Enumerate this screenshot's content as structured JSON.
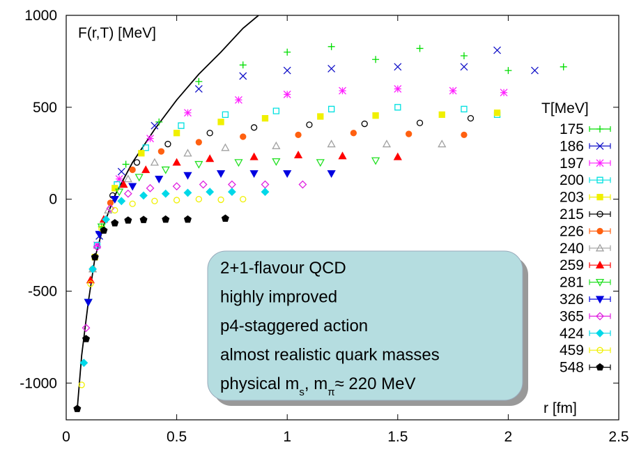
{
  "chart_data": {
    "type": "scatter",
    "ylabel": "F(r,T) [MeV]",
    "xlabel": "r [fm]",
    "legend_title": "T[MeV]",
    "legend_position": "right",
    "xlim": [
      0,
      2.5
    ],
    "xticks": [
      0,
      0.5,
      1,
      1.5,
      2,
      2.5
    ],
    "ylim": [
      -1200,
      1000
    ],
    "yticks": [
      -1000,
      -500,
      0,
      500,
      1000
    ],
    "curve": {
      "color": "#000000",
      "x": [
        0.05,
        0.07,
        0.1,
        0.13,
        0.17,
        0.22,
        0.3,
        0.4,
        0.5,
        0.6,
        0.7,
        0.8,
        0.87
      ],
      "values": [
        -1140,
        -850,
        -560,
        -320,
        -140,
        20,
        200,
        380,
        540,
        680,
        800,
        930,
        1000
      ]
    },
    "series": [
      {
        "name": "175",
        "color": "#00dd00",
        "marker": "plus",
        "x": [
          0.16,
          0.27,
          0.42,
          0.6,
          0.8,
          1.0,
          1.2,
          1.4,
          1.6,
          1.8,
          2.0,
          2.25
        ],
        "values": [
          -150,
          190,
          420,
          640,
          730,
          800,
          830,
          760,
          820,
          780,
          700,
          720
        ]
      },
      {
        "name": "186",
        "color": "#1010c8",
        "marker": "x",
        "x": [
          0.15,
          0.25,
          0.4,
          0.6,
          0.8,
          1.0,
          1.2,
          1.5,
          1.8,
          1.95,
          2.12
        ],
        "values": [
          -200,
          150,
          400,
          600,
          670,
          700,
          710,
          720,
          720,
          810,
          700
        ]
      },
      {
        "name": "197",
        "color": "#ff20ff",
        "marker": "star",
        "x": [
          0.14,
          0.24,
          0.38,
          0.55,
          0.78,
          1.0,
          1.25,
          1.5,
          1.75,
          1.98
        ],
        "values": [
          -250,
          110,
          330,
          470,
          540,
          570,
          590,
          600,
          590,
          580
        ]
      },
      {
        "name": "200",
        "color": "#00e0e0",
        "marker": "square-open",
        "x": [
          0.14,
          0.23,
          0.36,
          0.52,
          0.72,
          0.95,
          1.2,
          1.5,
          1.8,
          1.95
        ],
        "values": [
          -250,
          80,
          280,
          400,
          460,
          480,
          490,
          500,
          490,
          460
        ]
      },
      {
        "name": "203",
        "color": "#f0f000",
        "marker": "square",
        "x": [
          0.13,
          0.22,
          0.34,
          0.5,
          0.7,
          0.9,
          1.15,
          1.4,
          1.7,
          1.95
        ],
        "values": [
          -315,
          60,
          250,
          360,
          420,
          440,
          450,
          455,
          460,
          470
        ]
      },
      {
        "name": "215",
        "color": "#000000",
        "marker": "circle-open",
        "x": [
          0.13,
          0.21,
          0.32,
          0.46,
          0.65,
          0.85,
          1.1,
          1.35,
          1.6,
          1.83
        ],
        "values": [
          -315,
          20,
          200,
          300,
          360,
          390,
          405,
          410,
          415,
          440
        ]
      },
      {
        "name": "226",
        "color": "#ff6010",
        "marker": "circle",
        "x": [
          0.12,
          0.2,
          0.3,
          0.43,
          0.6,
          0.8,
          1.05,
          1.3,
          1.55,
          1.8
        ],
        "values": [
          -380,
          -20,
          160,
          260,
          310,
          340,
          350,
          360,
          355,
          350
        ]
      },
      {
        "name": "240",
        "color": "#a0a0a0",
        "marker": "triangle-open",
        "x": [
          0.12,
          0.19,
          0.28,
          0.4,
          0.55,
          0.72,
          0.95,
          1.2,
          1.45,
          1.7
        ],
        "values": [
          -380,
          -60,
          110,
          200,
          250,
          280,
          290,
          300,
          300,
          300
        ]
      },
      {
        "name": "259",
        "color": "#ff0000",
        "marker": "triangle",
        "x": [
          0.11,
          0.17,
          0.26,
          0.36,
          0.5,
          0.65,
          0.85,
          1.05,
          1.25,
          1.5
        ],
        "values": [
          -440,
          -110,
          80,
          160,
          200,
          220,
          230,
          240,
          235,
          230
        ]
      },
      {
        "name": "281",
        "color": "#20e020",
        "marker": "triangle-down-open",
        "x": [
          0.1,
          0.16,
          0.24,
          0.33,
          0.45,
          0.6,
          0.78,
          0.95,
          1.15,
          1.4
        ],
        "values": [
          -560,
          -150,
          40,
          120,
          160,
          190,
          200,
          205,
          200,
          210
        ]
      },
      {
        "name": "326",
        "color": "#0000e0",
        "marker": "triangle-down",
        "x": [
          0.1,
          0.15,
          0.22,
          0.3,
          0.42,
          0.55,
          0.7,
          0.85,
          1.0,
          1.2
        ],
        "values": [
          -560,
          -190,
          0,
          70,
          110,
          130,
          140,
          140,
          140,
          140
        ]
      },
      {
        "name": "365",
        "color": "#e020e0",
        "marker": "diamond-open",
        "x": [
          0.09,
          0.14,
          0.2,
          0.28,
          0.38,
          0.5,
          0.62,
          0.75,
          0.9,
          1.07
        ],
        "values": [
          -700,
          -260,
          -50,
          30,
          60,
          70,
          80,
          80,
          80,
          80
        ]
      },
      {
        "name": "424",
        "color": "#00d8e8",
        "marker": "diamond",
        "x": [
          0.08,
          0.12,
          0.18,
          0.25,
          0.35,
          0.45,
          0.55,
          0.65,
          0.75,
          0.9
        ],
        "values": [
          -890,
          -380,
          -110,
          -10,
          20,
          30,
          35,
          40,
          40,
          40
        ]
      },
      {
        "name": "459",
        "color": "#f0f000",
        "marker": "circle-open",
        "x": [
          0.07,
          0.11,
          0.16,
          0.22,
          0.3,
          0.4,
          0.5,
          0.6,
          0.7,
          0.8
        ],
        "values": [
          -1010,
          -460,
          -160,
          -60,
          -25,
          -10,
          -5,
          0,
          -3,
          0
        ]
      },
      {
        "name": "548",
        "color": "#000000",
        "marker": "pentagon",
        "x": [
          0.05,
          0.09,
          0.13,
          0.17,
          0.22,
          0.28,
          0.35,
          0.45,
          0.55,
          0.72
        ],
        "values": [
          -1140,
          -760,
          -315,
          -170,
          -130,
          -115,
          -112,
          -110,
          -110,
          -105
        ]
      }
    ],
    "annotation": {
      "fill": "#b5dde0",
      "lines": [
        [
          "2+1-flavour QCD"
        ],
        [
          "highly improved"
        ],
        [
          "p4-staggered action"
        ],
        [
          "almost realistic quark masses"
        ],
        [
          "physical m",
          {
            "text": "s",
            "sub": true
          },
          ", m",
          {
            "text": "π",
            "sub": true
          },
          "≈ 220 MeV"
        ]
      ]
    }
  }
}
